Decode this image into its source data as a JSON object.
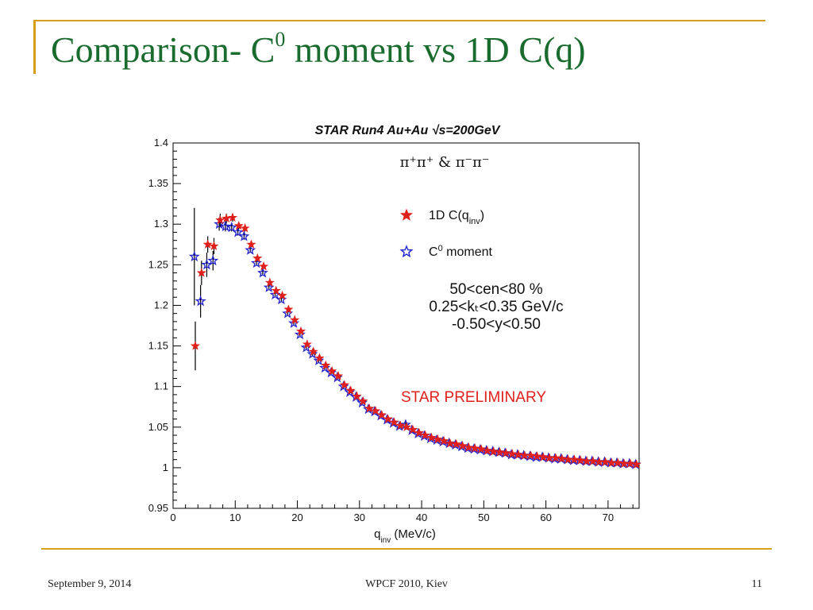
{
  "slide": {
    "title_main": "Comparison- C",
    "title_sup": "0",
    "title_rest": " moment vs 1D C(q)",
    "footer_date": "September 9, 2014",
    "footer_center": "WPCF 2010, Kiev",
    "footer_page": "11"
  },
  "colors": {
    "title": "#1a6b2e",
    "frame": "#d4a017",
    "series_1d": "#e0201c",
    "series_c0": "#2222cc",
    "preliminary": "#e0201c"
  },
  "chart_data": {
    "type": "scatter",
    "title": "STAR Run4 Au+Au √s=200GeV",
    "xlabel": "q",
    "xlabel_sub": "inv",
    "xlabel_unit": " (MeV/c)",
    "xlim": [
      0,
      75
    ],
    "ylim": [
      0.95,
      1.4
    ],
    "xticks": [
      0,
      10,
      20,
      30,
      40,
      50,
      60,
      70
    ],
    "yticks": [
      0.95,
      1,
      1.05,
      1.1,
      1.15,
      1.2,
      1.25,
      1.3,
      1.35,
      1.4
    ],
    "pair_label": "π⁺π⁺ & π⁻π⁻",
    "cuts": [
      "50<cen<80 %",
      "0.25<kₜ<0.35 GeV/c",
      "-0.50<y<0.50"
    ],
    "preliminary": "STAR PRELIMINARY",
    "legend_position": "top-right",
    "series": [
      {
        "name": "1D C(q",
        "name_sub": "inv",
        "name_tail": ")",
        "marker": "filled-star",
        "color": "#e0201c",
        "x": [
          3.5,
          4.5,
          5.5,
          6.5,
          7.5,
          8.5,
          9.5,
          10.5,
          11.5,
          12.5,
          13.5,
          14.5,
          15.5,
          16.5,
          17.5,
          18.5,
          19.5,
          20.5,
          21.5,
          22.5,
          23.5,
          24.5,
          25.5,
          26.5,
          27.5,
          28.5,
          29.5,
          30.5,
          31.5,
          32.5,
          33.5,
          34.5,
          35.5,
          36.5,
          37.5,
          38.5,
          39.5,
          40.5,
          41.5,
          42.5,
          43.5,
          44.5,
          45.5,
          46.5,
          47.5,
          48.5,
          49.5,
          50.5,
          51.5,
          52.5,
          53.5,
          54.5,
          55.5,
          56.5,
          57.5,
          58.5,
          59.5,
          60.5,
          61.5,
          62.5,
          63.5,
          64.5,
          65.5,
          66.5,
          67.5,
          68.5,
          69.5,
          70.5,
          71.5,
          72.5,
          73.5,
          74.5
        ],
        "y": [
          1.15,
          1.24,
          1.275,
          1.273,
          1.305,
          1.307,
          1.308,
          1.298,
          1.295,
          1.275,
          1.258,
          1.248,
          1.228,
          1.218,
          1.212,
          1.195,
          1.182,
          1.168,
          1.152,
          1.143,
          1.135,
          1.126,
          1.119,
          1.113,
          1.102,
          1.095,
          1.088,
          1.082,
          1.073,
          1.07,
          1.065,
          1.06,
          1.056,
          1.052,
          1.05,
          1.047,
          1.043,
          1.04,
          1.037,
          1.035,
          1.033,
          1.03,
          1.029,
          1.027,
          1.025,
          1.024,
          1.023,
          1.021,
          1.02,
          1.019,
          1.018,
          1.017,
          1.016,
          1.015,
          1.015,
          1.014,
          1.013,
          1.012,
          1.012,
          1.011,
          1.01,
          1.01,
          1.009,
          1.008,
          1.008,
          1.007,
          1.007,
          1.006,
          1.006,
          1.005,
          1.005,
          1.004
        ],
        "yerr": [
          0.03,
          0.015,
          0.01,
          0.01,
          0.008,
          0.006,
          0.005,
          0.004,
          0.004,
          0.003,
          0.003,
          0.003,
          0.003,
          0.003,
          0.003,
          0.003,
          0.003,
          0.003,
          0.003,
          0.003,
          0.003,
          0.003,
          0.003,
          0.003,
          0.003,
          0.003,
          0.003,
          0.003,
          0.003,
          0.003,
          0.003,
          0.003,
          0.003,
          0.003,
          0.003,
          0.003,
          0.003,
          0.003,
          0.003,
          0.003,
          0.003,
          0.003,
          0.003,
          0.003,
          0.003,
          0.003,
          0.003,
          0.003,
          0.003,
          0.003,
          0.003,
          0.003,
          0.003,
          0.003,
          0.003,
          0.003,
          0.003,
          0.003,
          0.003,
          0.003,
          0.003,
          0.003,
          0.003,
          0.003,
          0.003,
          0.003,
          0.003,
          0.003,
          0.003,
          0.003,
          0.003,
          0.003
        ]
      },
      {
        "name": "C",
        "name_sup": "0",
        "name_tail": " moment",
        "marker": "open-star",
        "color": "#2222cc",
        "x": [
          3.5,
          4.5,
          5.5,
          6.5,
          7.5,
          8.5,
          9.5,
          10.5,
          11.5,
          12.5,
          13.5,
          14.5,
          15.5,
          16.5,
          17.5,
          18.5,
          19.5,
          20.5,
          21.5,
          22.5,
          23.5,
          24.5,
          25.5,
          26.5,
          27.5,
          28.5,
          29.5,
          30.5,
          31.5,
          32.5,
          33.5,
          34.5,
          35.5,
          36.5,
          37.5,
          38.5,
          39.5,
          40.5,
          41.5,
          42.5,
          43.5,
          44.5,
          45.5,
          46.5,
          47.5,
          48.5,
          49.5,
          50.5,
          51.5,
          52.5,
          53.5,
          54.5,
          55.5,
          56.5,
          57.5,
          58.5,
          59.5,
          60.5,
          61.5,
          62.5,
          63.5,
          64.5,
          65.5,
          66.5,
          67.5,
          68.5,
          69.5,
          70.5,
          71.5,
          72.5,
          73.5,
          74.5
        ],
        "y": [
          1.26,
          1.205,
          1.25,
          1.255,
          1.3,
          1.297,
          1.296,
          1.29,
          1.285,
          1.268,
          1.252,
          1.24,
          1.222,
          1.213,
          1.207,
          1.19,
          1.178,
          1.164,
          1.148,
          1.14,
          1.132,
          1.123,
          1.117,
          1.111,
          1.1,
          1.093,
          1.087,
          1.08,
          1.072,
          1.069,
          1.064,
          1.059,
          1.055,
          1.051,
          1.053,
          1.046,
          1.042,
          1.039,
          1.036,
          1.034,
          1.032,
          1.03,
          1.028,
          1.026,
          1.024,
          1.023,
          1.022,
          1.021,
          1.02,
          1.019,
          1.018,
          1.016,
          1.016,
          1.015,
          1.014,
          1.013,
          1.013,
          1.012,
          1.011,
          1.011,
          1.01,
          1.009,
          1.009,
          1.008,
          1.008,
          1.007,
          1.007,
          1.006,
          1.006,
          1.005,
          1.005,
          1.004
        ],
        "yerr": [
          0.06,
          0.02,
          0.015,
          0.012,
          0.008,
          0.006,
          0.005,
          0.004,
          0.004,
          0.003,
          0.003,
          0.003,
          0.003,
          0.003,
          0.003,
          0.003,
          0.003,
          0.003,
          0.003,
          0.003,
          0.003,
          0.003,
          0.003,
          0.003,
          0.003,
          0.003,
          0.003,
          0.003,
          0.003,
          0.003,
          0.003,
          0.003,
          0.003,
          0.003,
          0.003,
          0.003,
          0.003,
          0.003,
          0.003,
          0.003,
          0.003,
          0.003,
          0.003,
          0.003,
          0.003,
          0.003,
          0.003,
          0.003,
          0.003,
          0.003,
          0.003,
          0.003,
          0.003,
          0.003,
          0.003,
          0.003,
          0.003,
          0.003,
          0.003,
          0.003,
          0.003,
          0.003,
          0.003,
          0.003,
          0.003,
          0.003,
          0.003,
          0.003,
          0.003,
          0.003,
          0.003,
          0.003
        ]
      }
    ]
  }
}
